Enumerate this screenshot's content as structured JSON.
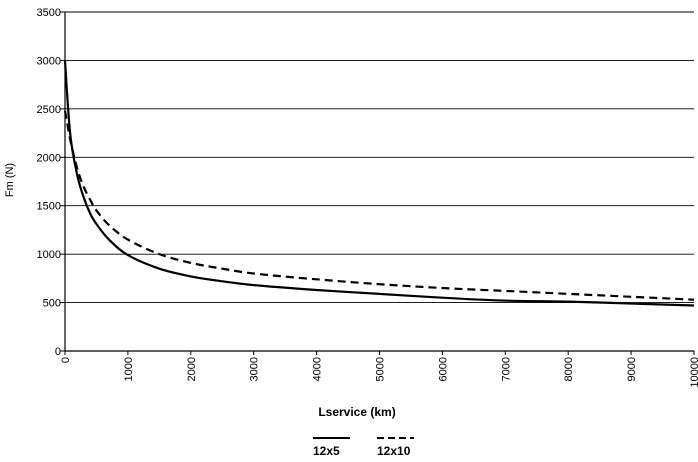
{
  "chart_data": {
    "type": "line",
    "title": "",
    "xlabel": "Lservice (km)",
    "ylabel": "Fm (N)",
    "xlim": [
      0,
      10000
    ],
    "ylim": [
      0,
      3500
    ],
    "x_ticks": [
      0,
      1000,
      2000,
      3000,
      4000,
      5000,
      6000,
      7000,
      8000,
      9000,
      10000
    ],
    "y_ticks": [
      0,
      500,
      1000,
      1500,
      2000,
      2500,
      3000,
      3500
    ],
    "grid": "horizontal",
    "legend_position": "bottom",
    "series": [
      {
        "name": "12x5",
        "style": "solid",
        "color": "#000000",
        "x": [
          0,
          50,
          100,
          200,
          300,
          400,
          500,
          700,
          1000,
          1500,
          2000,
          2500,
          3000,
          4000,
          5000,
          6000,
          7000,
          8000,
          9000,
          10000
        ],
        "values": [
          3000,
          2500,
          2150,
          1800,
          1580,
          1420,
          1310,
          1150,
          990,
          850,
          770,
          720,
          680,
          630,
          590,
          550,
          520,
          510,
          490,
          470
        ]
      },
      {
        "name": "12x10",
        "style": "dashed",
        "color": "#000000",
        "x": [
          0,
          50,
          100,
          200,
          300,
          400,
          500,
          700,
          1000,
          1500,
          2000,
          2500,
          3000,
          4000,
          5000,
          6000,
          7000,
          8000,
          9000,
          10000
        ],
        "values": [
          2480,
          2300,
          2130,
          1870,
          1690,
          1560,
          1450,
          1300,
          1150,
          1000,
          910,
          850,
          800,
          740,
          690,
          650,
          620,
          590,
          560,
          530
        ]
      }
    ]
  }
}
